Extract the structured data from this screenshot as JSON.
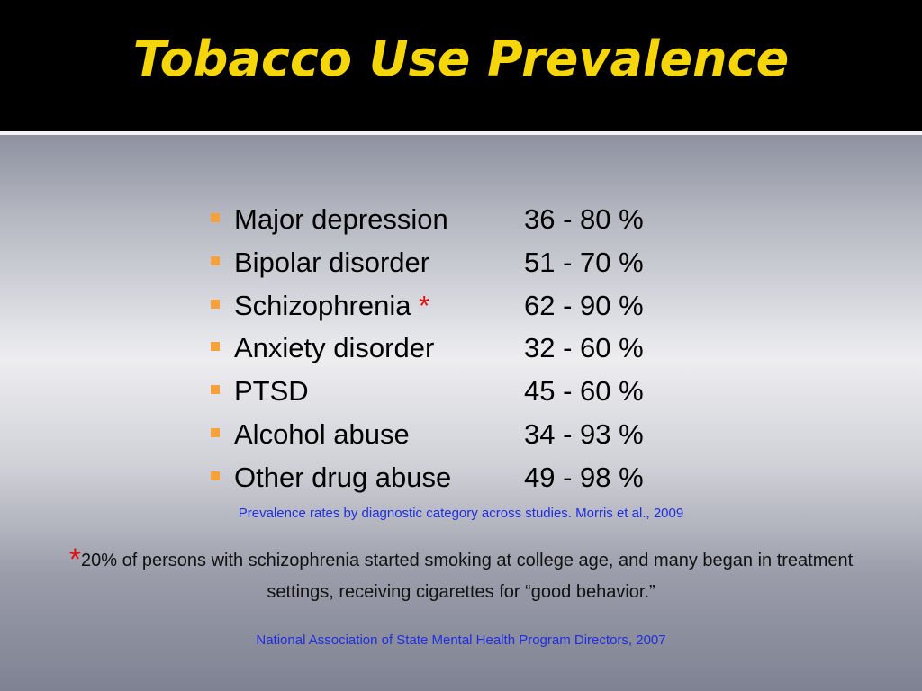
{
  "title": "Tobacco Use Prevalence",
  "colors": {
    "title": "#f5d60b",
    "bullet": "#f6a13a",
    "asterisk": "#e01010",
    "citation": "#1e2ee0",
    "header_background": "#000000"
  },
  "items": [
    {
      "label": "Major depression",
      "range": "36 - 80 %"
    },
    {
      "label": "Bipolar disorder",
      "range": "51 - 70 %"
    },
    {
      "label": "Schizophrenia",
      "marker": "*",
      "range": "62 - 90 %"
    },
    {
      "label": "Anxiety disorder",
      "range": "32 - 60 %"
    },
    {
      "label": "PTSD",
      "range": "45 - 60 %"
    },
    {
      "label": "Alcohol abuse",
      "range": "34 - 93 %"
    },
    {
      "label": "Other drug abuse",
      "range": "49 - 98 %"
    }
  ],
  "citation_1": "Prevalence rates by diagnostic category across studies. Morris et al., 2009",
  "footnote": {
    "marker": "*",
    "text": "20% of persons with schizophrenia started smoking at college age, and many began in treatment settings, receiving cigarettes for “good behavior.”"
  },
  "citation_2": "National Association of State Mental Health Program Directors, 2007"
}
